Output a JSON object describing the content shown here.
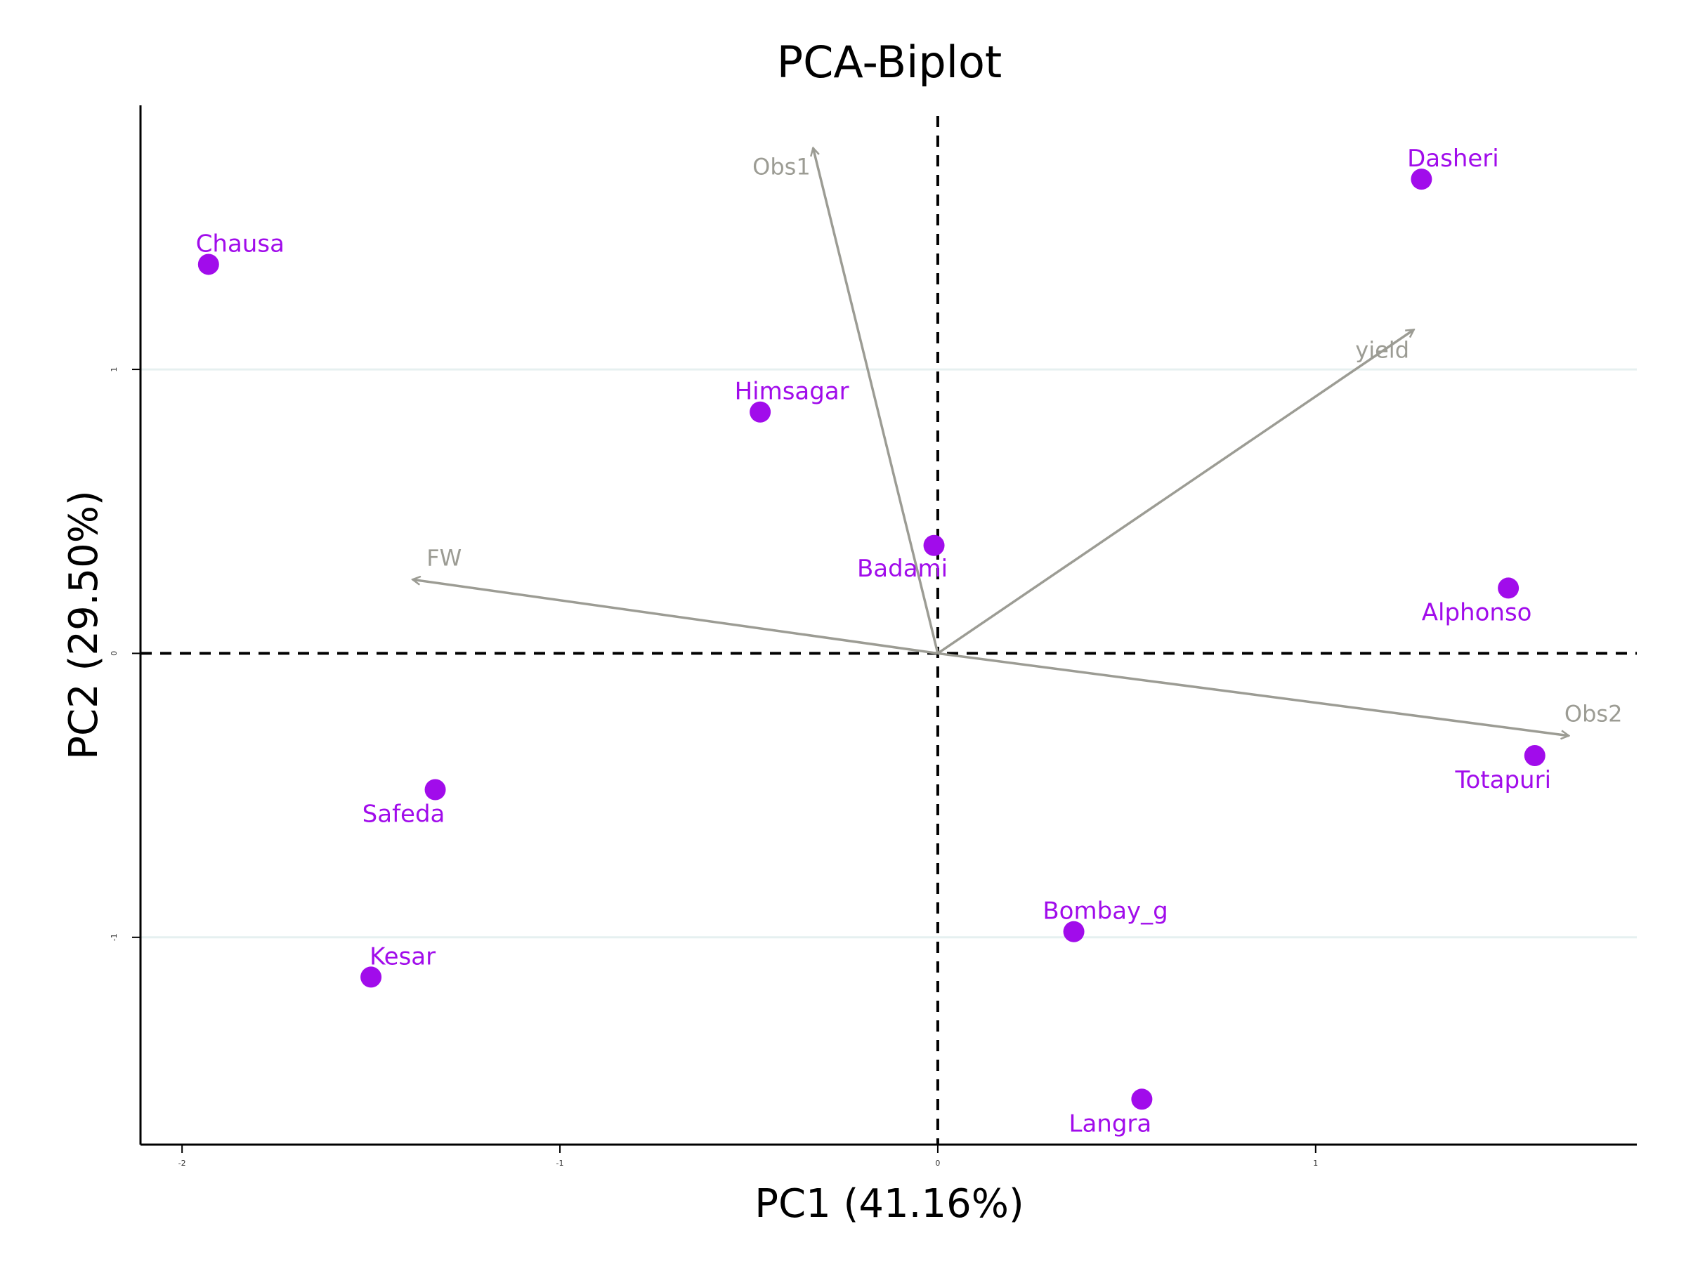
{
  "chart_data": {
    "type": "scatter",
    "title": "PCA-Biplot",
    "xlabel": "PC1 (41.16%)",
    "ylabel": "PC2 (29.50%)",
    "xlim": [
      -2.11,
      1.85
    ],
    "ylim": [
      -1.73,
      1.93
    ],
    "xticks": [
      "-2",
      "-1",
      "0",
      "1"
    ],
    "yticks": [
      "-1",
      "0",
      "1"
    ],
    "grid": "horizontal",
    "point_color": "#a10ceb",
    "arrow_color": "#9c9c94",
    "grid_color": "#e6f0f0",
    "points": [
      {
        "name": "Chausa",
        "x": -1.93,
        "y": 1.37
      },
      {
        "name": "Himsagar",
        "x": -0.47,
        "y": 0.85
      },
      {
        "name": "Badami",
        "x": -0.01,
        "y": 0.38
      },
      {
        "name": "Dasheri",
        "x": 1.28,
        "y": 1.67
      },
      {
        "name": "Alphonso",
        "x": 1.51,
        "y": 0.23
      },
      {
        "name": "Totapuri",
        "x": 1.58,
        "y": -0.36
      },
      {
        "name": "Safeda",
        "x": -1.33,
        "y": -0.48
      },
      {
        "name": "Kesar",
        "x": -1.5,
        "y": -1.14
      },
      {
        "name": "Bombay_g",
        "x": 0.36,
        "y": -0.98
      },
      {
        "name": "Langra",
        "x": 0.54,
        "y": -1.57
      }
    ],
    "loadings": [
      {
        "name": "Obs1",
        "x": -0.33,
        "y": 1.78
      },
      {
        "name": "yield",
        "x": 1.26,
        "y": 1.14
      },
      {
        "name": "FW",
        "x": -1.39,
        "y": 0.26
      },
      {
        "name": "Obs2",
        "x": 1.67,
        "y": -0.29
      }
    ]
  }
}
